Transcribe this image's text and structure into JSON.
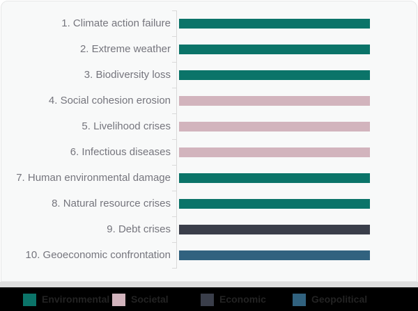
{
  "chart_data": {
    "type": "bar",
    "orientation": "horizontal",
    "categories": [
      "1. Climate action failure",
      "2. Extreme weather",
      "3. Biodiversity loss",
      "4. Social cohesion erosion",
      "5. Livelihood crises",
      "6. Infectious diseases",
      "7. Human environmental damage",
      "8. Natural resource crises",
      "9. Debt crises",
      "10. Geoeconomic confrontation"
    ],
    "values": [
      1,
      1,
      1,
      1,
      1,
      1,
      1,
      1,
      1,
      1
    ],
    "xlim": [
      0,
      1
    ],
    "grid": false,
    "legend_position": "bottom",
    "note": "Ranking chart: all bars are equal length; bar color encodes the risk category",
    "bar_categories": [
      "Environmental",
      "Environmental",
      "Environmental",
      "Societal",
      "Societal",
      "Societal",
      "Environmental",
      "Environmental",
      "Economic",
      "Geopolitical"
    ],
    "category_colors": {
      "Environmental": "#0b7469",
      "Societal": "#d2b4bd",
      "Economic": "#3a3e4a",
      "Geopolitical": "#31627f"
    }
  },
  "legend": {
    "items": [
      {
        "label": "Environmental",
        "color": "#0b7469"
      },
      {
        "label": "Societal",
        "color": "#d2b4bd"
      },
      {
        "label": "Economic",
        "color": "#3a3e4a"
      },
      {
        "label": "Geopolitical",
        "color": "#31627f"
      }
    ]
  },
  "colors": {
    "card_background": "#f8f9f9",
    "card_border": "#e7e8e8",
    "axis": "#d9d9d9",
    "label_text": "#75757d",
    "divider": "#dedede",
    "legend_background": "#000000",
    "legend_text": "#232323"
  }
}
